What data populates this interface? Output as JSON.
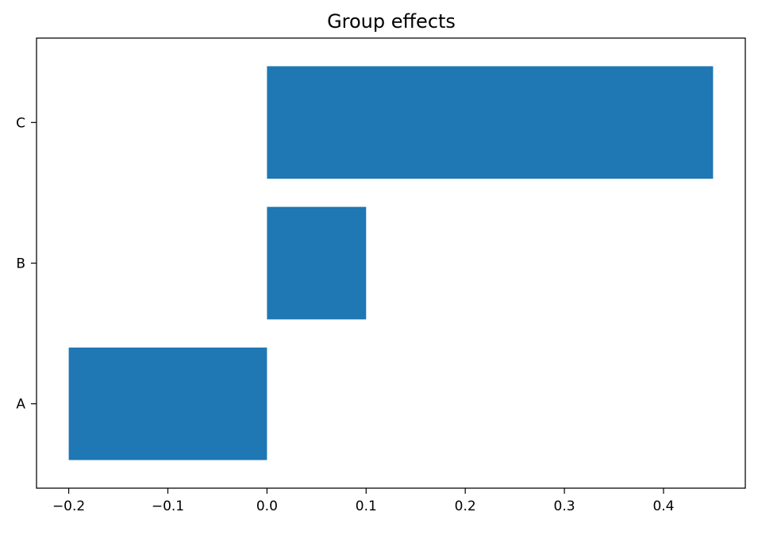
{
  "chart_data": {
    "type": "bar",
    "orientation": "horizontal",
    "title": "Group effects",
    "xlabel": "",
    "ylabel": "",
    "categories": [
      "A",
      "B",
      "C"
    ],
    "values": [
      -0.2,
      0.1,
      0.45
    ],
    "xlim": [
      -0.2325,
      0.4825
    ],
    "xticks": [
      -0.2,
      -0.1,
      0.0,
      0.1,
      0.2,
      0.3,
      0.4
    ],
    "xtick_labels": [
      "−0.2",
      "−0.1",
      "0.0",
      "0.1",
      "0.2",
      "0.3",
      "0.4"
    ],
    "bar_color": "#1f77b4",
    "grid": false,
    "legend": null
  }
}
